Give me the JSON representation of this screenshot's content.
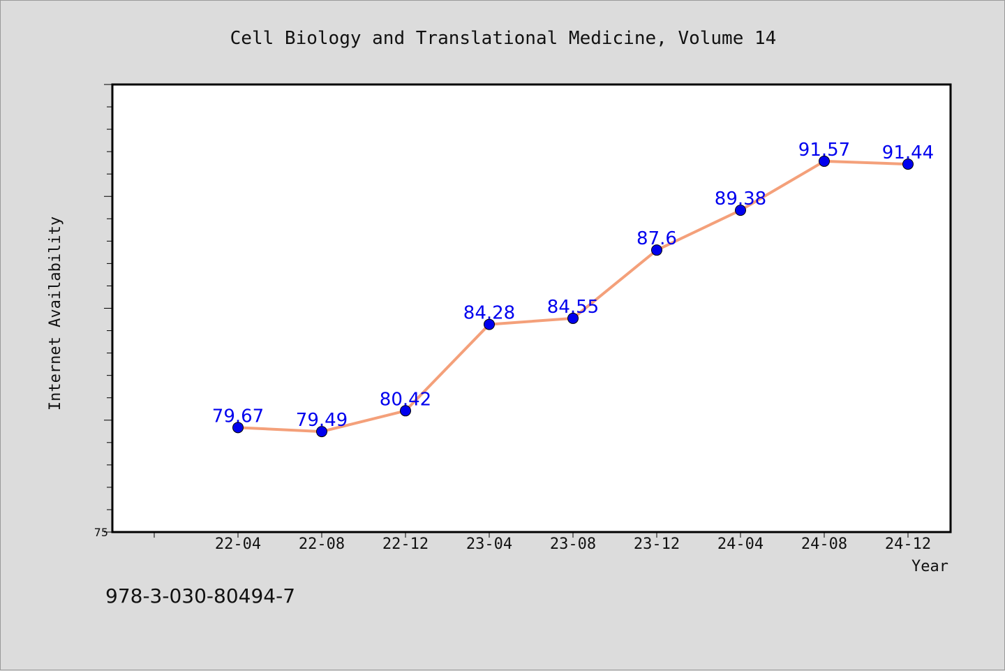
{
  "figure": {
    "title": "Cell Biology and Translational Medicine, Volume 14",
    "footer_text": "978-3-030-80494-7"
  },
  "chart_data": {
    "type": "line",
    "title": "Cell Biology and Translational Medicine, Volume 14",
    "xlabel": "Year",
    "ylabel": "Internet Availability",
    "categories": [
      "22-04",
      "22-08",
      "22-12",
      "23-04",
      "23-08",
      "23-12",
      "24-04",
      "24-08",
      "24-12"
    ],
    "series": [
      {
        "values": [
          79.67,
          79.49,
          80.42,
          84.28,
          84.55,
          87.6,
          89.38,
          91.57,
          91.44
        ],
        "data_labels": [
          "79.67",
          "79.49",
          "80.42",
          "84.28",
          "84.55",
          "87.6",
          "89.38",
          "91.57",
          "91.44"
        ],
        "line_color": "#f4a07a",
        "marker_color": "#0000ee",
        "label_color": "#0000ee"
      }
    ],
    "ylim": [
      75,
      95
    ],
    "y_tick_labels": [
      "75"
    ],
    "grid": false,
    "legend": "none",
    "plot_background": "#ffffff",
    "figure_background": "#dcdcdc"
  }
}
